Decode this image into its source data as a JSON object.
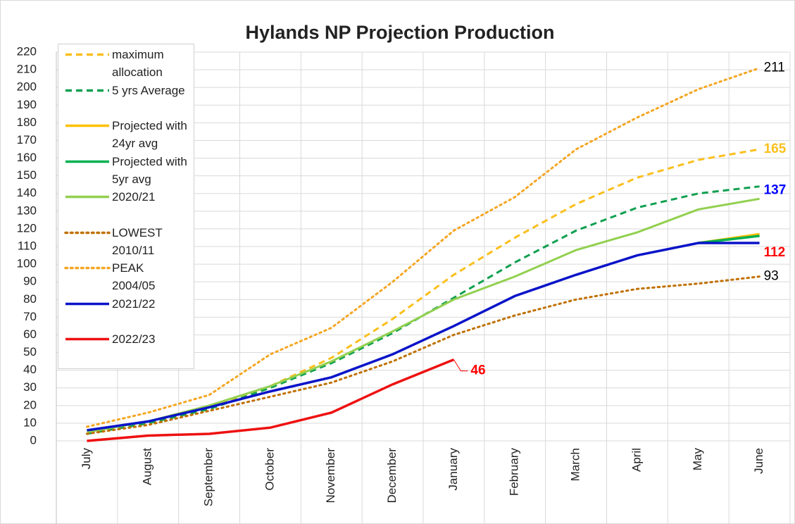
{
  "chart_data": {
    "type": "line",
    "title": "Hylands NP Projection Production",
    "categories": [
      "July",
      "August",
      "September",
      "October",
      "November",
      "December",
      "January",
      "February",
      "March",
      "April",
      "May",
      "June"
    ],
    "ylim": [
      0,
      220
    ],
    "yticks": [
      0,
      10,
      20,
      30,
      40,
      50,
      60,
      70,
      80,
      90,
      100,
      110,
      120,
      130,
      140,
      150,
      160,
      170,
      180,
      190,
      200,
      210,
      220
    ],
    "grid": true,
    "legend": "left",
    "series": [
      {
        "name": "maximum allocation",
        "color": "#fbbf1c",
        "dash": "dashed",
        "values": [
          6,
          10,
          19,
          31,
          47,
          69,
          94,
          115,
          134,
          149,
          159,
          165
        ],
        "value_labels": [
          null,
          null,
          null,
          null,
          null,
          null,
          null,
          null,
          null,
          null,
          null,
          "165"
        ],
        "label_color": "#fbbf1c"
      },
      {
        "name": "5 yrs Average",
        "color": "#10a050",
        "dash": "dashed",
        "values": [
          4,
          10,
          18,
          30,
          44,
          61,
          81,
          101,
          119,
          132,
          140,
          144
        ]
      },
      {
        "name": "Projected with 24yr avg",
        "color": "#ffc000",
        "dash": "solid",
        "values": [
          null,
          null,
          null,
          null,
          null,
          null,
          null,
          null,
          null,
          null,
          112,
          117
        ]
      },
      {
        "name": "Projected with 5yr avg",
        "color": "#00b050",
        "dash": "solid",
        "values": [
          null,
          null,
          null,
          null,
          null,
          null,
          null,
          null,
          null,
          null,
          112,
          116
        ]
      },
      {
        "name": "2020/21",
        "color": "#92d050",
        "dash": "solid",
        "values": [
          5,
          11,
          20,
          31,
          45,
          62,
          80,
          93,
          108,
          118,
          131,
          137
        ],
        "value_labels": [
          null,
          null,
          null,
          null,
          null,
          null,
          null,
          null,
          null,
          null,
          null,
          "137"
        ],
        "label_color": "#0000ff"
      },
      {
        "name": "LOWEST 2010/11",
        "color": "#c07000",
        "dash": "dotted",
        "values": [
          4,
          9,
          17,
          25,
          33,
          45,
          60,
          71,
          80,
          86,
          89,
          93
        ],
        "value_labels": [
          null,
          null,
          null,
          null,
          null,
          null,
          null,
          null,
          null,
          null,
          null,
          "93"
        ],
        "label_color": "#000000"
      },
      {
        "name": "PEAK 2004/05",
        "color": "#f5a623",
        "dash": "dotted",
        "values": [
          8,
          16,
          26,
          49,
          64,
          90,
          119,
          138,
          165,
          183,
          199,
          211
        ],
        "value_labels": [
          null,
          null,
          null,
          null,
          null,
          null,
          null,
          null,
          null,
          null,
          null,
          "211"
        ],
        "label_color": "#000000"
      },
      {
        "name": "2021/22",
        "color": "#0a14c8",
        "dash": "solid",
        "values": [
          6,
          11,
          19,
          28,
          36,
          49,
          65,
          82,
          94,
          105,
          112,
          112
        ],
        "value_labels": [
          null,
          null,
          null,
          null,
          null,
          null,
          null,
          null,
          null,
          null,
          null,
          "112"
        ],
        "label_color": "#ff0000"
      },
      {
        "name": "2022/23",
        "color": "#ee1111",
        "dash": "solid",
        "values": [
          0,
          3,
          4,
          7.5,
          16,
          32,
          46,
          null,
          null,
          null,
          null,
          null
        ],
        "value_labels": [
          null,
          null,
          null,
          null,
          null,
          null,
          "46"
        ],
        "label_color": "#ff0000"
      }
    ]
  }
}
